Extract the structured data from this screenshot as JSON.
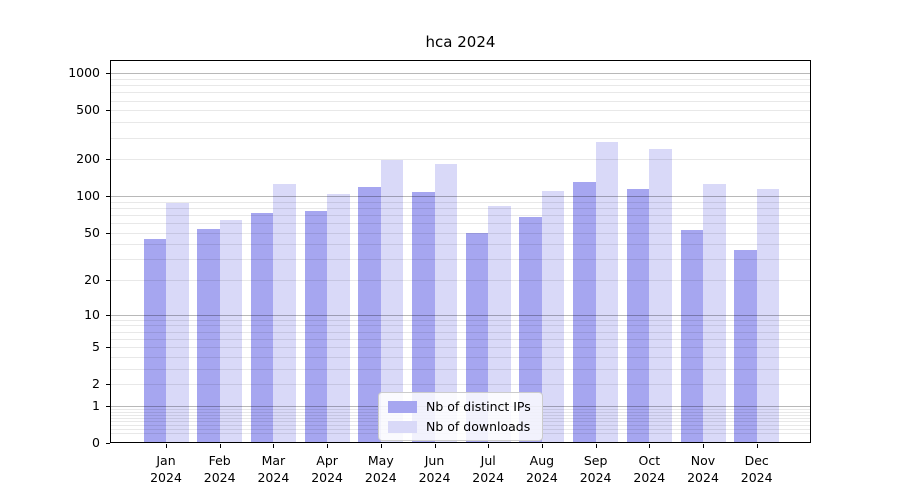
{
  "chart_data": {
    "type": "bar",
    "title": "hca 2024",
    "categories": [
      {
        "month": "Jan",
        "year": "2024"
      },
      {
        "month": "Feb",
        "year": "2024"
      },
      {
        "month": "Mar",
        "year": "2024"
      },
      {
        "month": "Apr",
        "year": "2024"
      },
      {
        "month": "May",
        "year": "2024"
      },
      {
        "month": "Jun",
        "year": "2024"
      },
      {
        "month": "Jul",
        "year": "2024"
      },
      {
        "month": "Aug",
        "year": "2024"
      },
      {
        "month": "Sep",
        "year": "2024"
      },
      {
        "month": "Oct",
        "year": "2024"
      },
      {
        "month": "Nov",
        "year": "2024"
      },
      {
        "month": "Dec",
        "year": "2024"
      }
    ],
    "series": [
      {
        "name": "Nb of distinct IPs",
        "color": "#a6a6f0",
        "values": [
          44,
          54,
          73,
          75,
          118,
          107,
          50,
          67,
          130,
          115,
          52,
          36
        ]
      },
      {
        "name": "Nb of downloads",
        "color": "#d9d9f8",
        "values": [
          88,
          63,
          125,
          103,
          195,
          181,
          82,
          109,
          278,
          241,
          125,
          114
        ]
      }
    ],
    "y_axis": {
      "scale": "log1p",
      "min": 0,
      "max": 1280,
      "ticks": [
        0,
        1,
        2,
        5,
        10,
        20,
        50,
        100,
        200,
        500,
        1000
      ],
      "major_gridlines": [
        1,
        10,
        100,
        1000
      ],
      "minor_gridlines": [
        0.2,
        0.3,
        0.4,
        0.5,
        0.6,
        0.7,
        0.8,
        0.9,
        2,
        3,
        4,
        5,
        6,
        7,
        8,
        9,
        20,
        30,
        40,
        50,
        60,
        70,
        80,
        90,
        200,
        300,
        400,
        500,
        600,
        700,
        800,
        900
      ]
    },
    "legend_position": "lower center",
    "grid_major_color": "rgba(0,0,0,0.28)",
    "grid_minor_color": "rgba(0,0,0,0.09)"
  }
}
